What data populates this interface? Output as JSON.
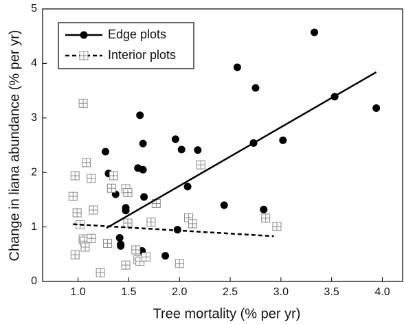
{
  "chart_data": {
    "type": "scatter",
    "x_label": "Tree mortality (% per yr)",
    "y_label": "Change in liana abundance (% per yr)",
    "xlim": [
      0.65,
      4.2
    ],
    "ylim": [
      0,
      5
    ],
    "xticks": [
      {
        "value": 1,
        "label": "1.0"
      },
      {
        "value": 1.5,
        "label": "1.5"
      },
      {
        "value": 2,
        "label": "2.0"
      },
      {
        "value": 2.5,
        "label": "2.5"
      },
      {
        "value": 3,
        "label": "3.0"
      },
      {
        "value": 3.5,
        "label": "3.5"
      },
      {
        "value": 4,
        "label": "4.0"
      }
    ],
    "yticks": [
      0,
      1,
      2,
      3,
      4,
      5
    ],
    "legend": "top-left",
    "series": [
      {
        "name": "Edge plots",
        "color": "#000000",
        "marker": "circle",
        "line": "solid",
        "x": [
          1.27,
          1.3,
          1.37,
          1.47,
          1.47,
          1.41,
          1.42,
          1.42,
          1.59,
          1.61,
          1.64,
          1.64,
          1.65,
          1.63,
          1.86,
          1.96,
          2.02,
          2.08,
          1.98,
          2.18,
          2.44,
          2.57,
          2.73,
          2.75,
          2.83,
          3.02,
          3.33,
          3.53,
          3.94
        ],
        "values": [
          2.38,
          1.98,
          1.6,
          1.35,
          1.3,
          0.8,
          0.68,
          0.65,
          2.08,
          3.05,
          2.53,
          2.05,
          1.55,
          0.56,
          0.47,
          2.61,
          2.42,
          1.74,
          0.95,
          2.41,
          1.4,
          3.93,
          2.54,
          3.55,
          1.32,
          2.59,
          4.57,
          3.39,
          3.18
        ],
        "trend": {
          "x": [
            1.28,
            3.94
          ],
          "y": [
            0.98,
            3.84
          ]
        }
      },
      {
        "name": "Interior plots",
        "color": "#888888",
        "marker": "square",
        "line": "dashed",
        "x": [
          1.05,
          1.08,
          0.97,
          0.95,
          0.99,
          1.02,
          1.05,
          1.06,
          1.07,
          1.13,
          0.97,
          1.13,
          1.15,
          1.33,
          1.35,
          1.29,
          1.22,
          1.47,
          1.49,
          1.49,
          1.47,
          1.57,
          1.59,
          1.61,
          1.67,
          1.72,
          1.77,
          2.0,
          2.09,
          2.13,
          2.21,
          2.85,
          2.96
        ],
        "values": [
          3.27,
          2.18,
          1.94,
          1.56,
          1.26,
          1.04,
          0.78,
          0.74,
          0.63,
          0.79,
          0.49,
          1.89,
          1.31,
          1.71,
          1.94,
          0.7,
          0.16,
          1.7,
          1.63,
          1.07,
          0.3,
          0.58,
          0.4,
          0.37,
          0.45,
          1.09,
          1.43,
          0.33,
          1.17,
          1.06,
          2.14,
          1.16,
          1.01
        ],
        "trend": {
          "x": [
            0.95,
            2.93
          ],
          "y": [
            1.05,
            0.83
          ]
        }
      }
    ]
  }
}
